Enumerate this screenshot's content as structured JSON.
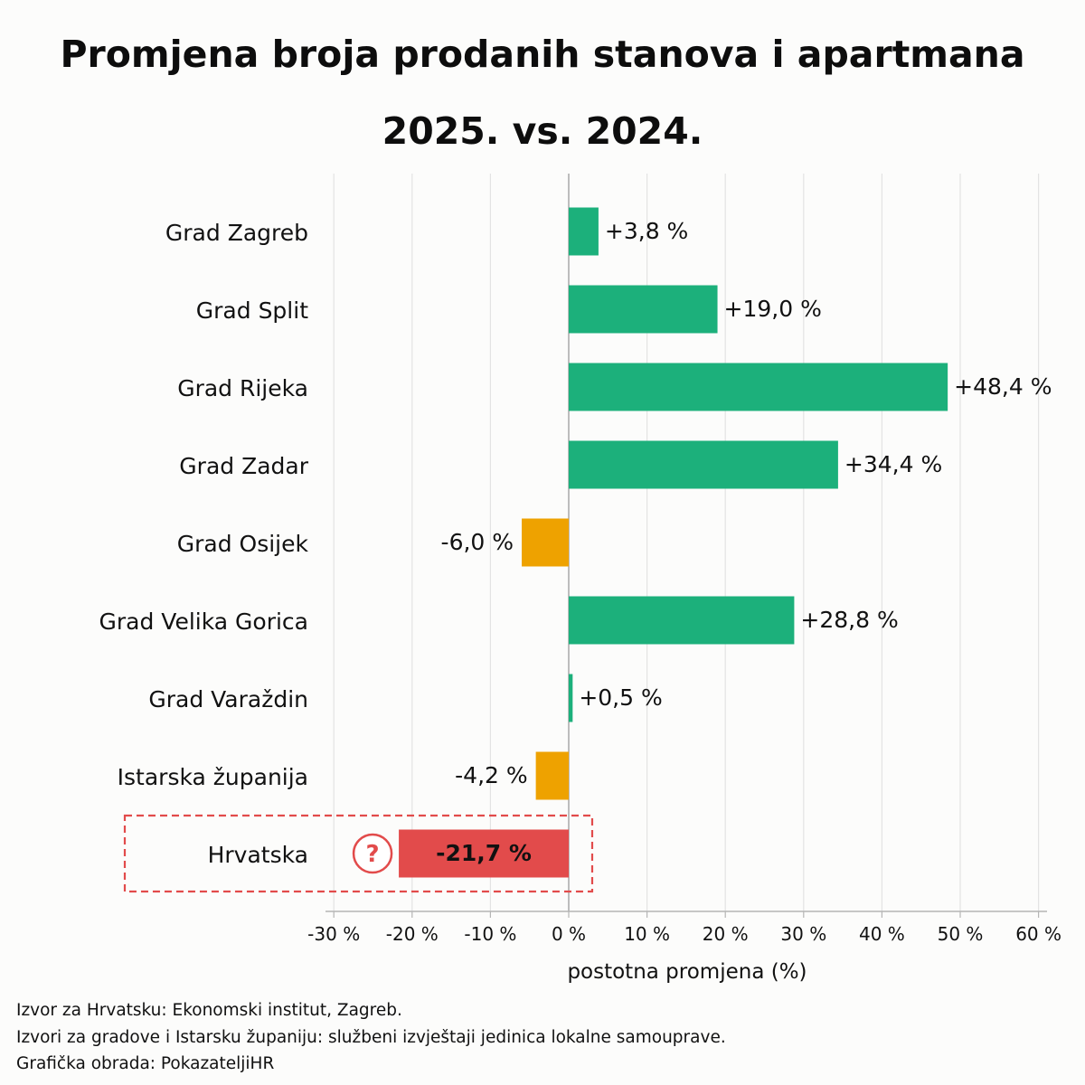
{
  "title_line1": "Promjena broja prodanih stanova i apartmana",
  "title_line2": "2025. vs. 2024.",
  "chart_data": {
    "type": "bar",
    "orientation": "horizontal",
    "categories": [
      "Grad Zagreb",
      "Grad Split",
      "Grad Rijeka",
      "Grad Zadar",
      "Grad Osijek",
      "Grad Velika Gorica",
      "Grad Varaždin",
      "Istarska županija",
      "Hrvatska"
    ],
    "values": [
      3.8,
      19.0,
      48.4,
      34.4,
      -6.0,
      28.8,
      0.5,
      -4.2,
      -21.7
    ],
    "value_labels": [
      "+3,8 %",
      "+19,0 %",
      "+48,4 %",
      "+34,4 %",
      "-6,0 %",
      "+28,8 %",
      "+0,5 %",
      "-4,2 %",
      "-21,7 %"
    ],
    "xlim": [
      -31,
      61
    ],
    "xticks": [
      -30,
      -20,
      -10,
      0,
      10,
      20,
      30,
      40,
      50,
      60
    ],
    "xtick_labels": [
      "-30 %",
      "-20 %",
      "-10 %",
      "0 %",
      "10 %",
      "20 %",
      "30 %",
      "40 %",
      "50 %",
      "60 %"
    ],
    "xlabel": "postotna promjena (%)",
    "grid": "vertical",
    "highlight": {
      "category": "Hrvatska",
      "marker": "?",
      "outline": "dashed"
    },
    "colors": {
      "positive": "#1cb07b",
      "negative": "#eea200",
      "highlight": "#e24b4b"
    }
  },
  "footer": {
    "line1": "Izvor za Hrvatsku: Ekonomski institut, Zagreb.",
    "line2": "Izvori za gradove i Istarsku županiju: službeni izvještaji jedinica lokalne samouprave.",
    "line3": "Grafička obrada: PokazateljiHR"
  }
}
